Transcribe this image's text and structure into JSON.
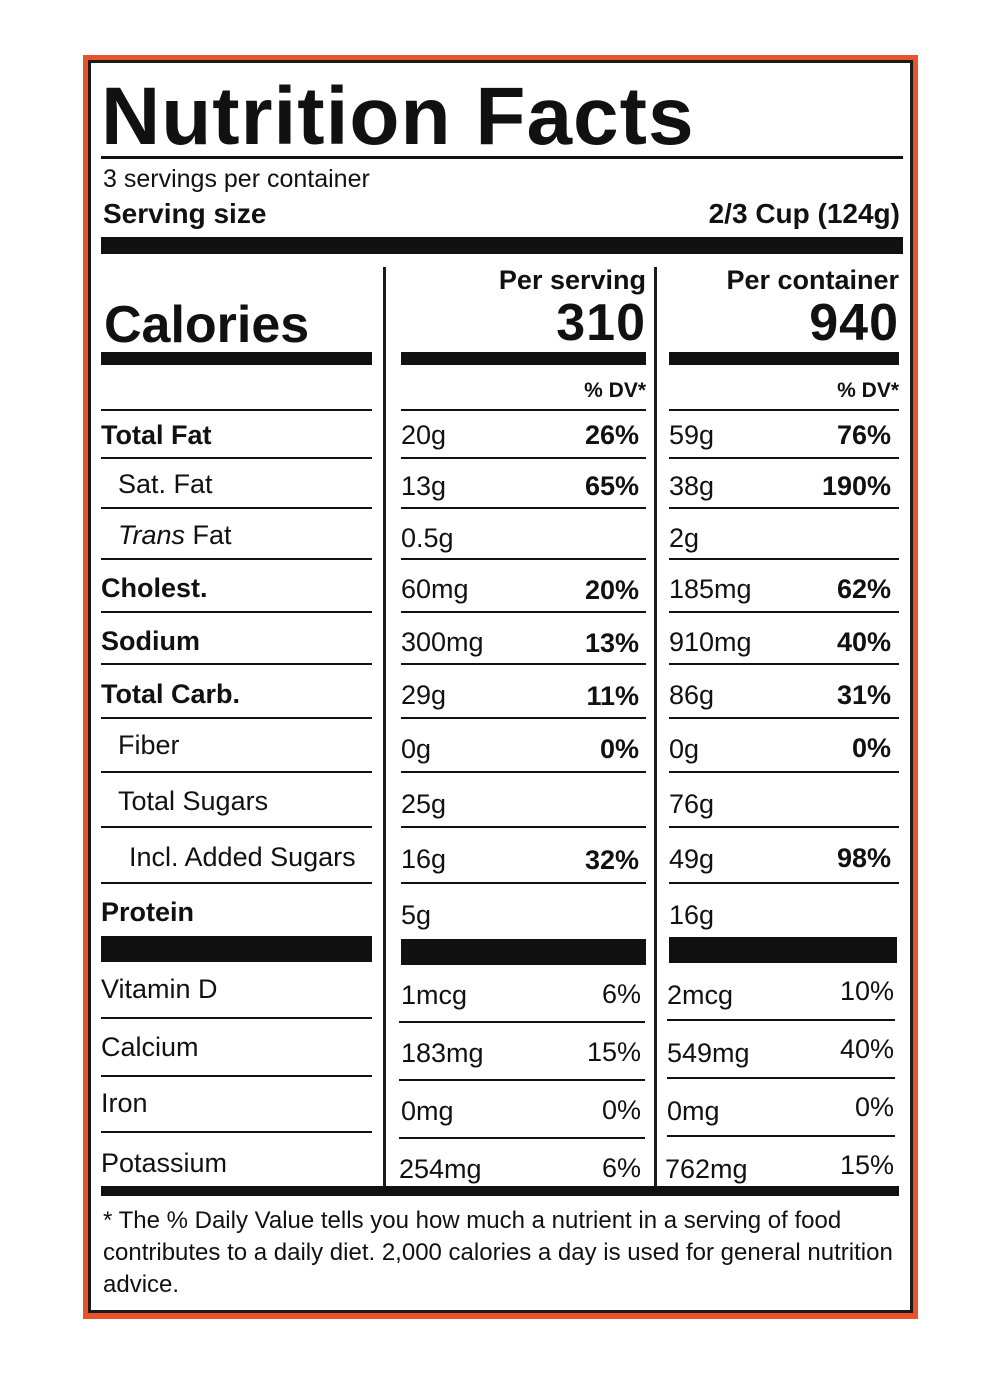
{
  "title": "Nutrition Facts",
  "servings_per_container": "3 servings per container",
  "serving_size_label": "Serving size",
  "serving_size_value": "2/3 Cup (124g)",
  "calories_label": "Calories",
  "per_serving_label": "Per serving",
  "per_container_label": "Per container",
  "calories_per_serving": "310",
  "calories_per_container": "940",
  "dv_header": "% DV*",
  "nutrients": [
    {
      "name": "Total Fat",
      "serving_amt": "20g",
      "serving_dv": "26%",
      "container_amt": "59g",
      "container_dv": "76%"
    },
    {
      "name": "Sat. Fat",
      "serving_amt": "13g",
      "serving_dv": "65%",
      "container_amt": "38g",
      "container_dv": "190%"
    },
    {
      "name_italic": "Trans",
      "name_rest": " Fat",
      "serving_amt": "0.5g",
      "serving_dv": "",
      "container_amt": "2g",
      "container_dv": ""
    },
    {
      "name": "Cholest.",
      "serving_amt": "60mg",
      "serving_dv": "20%",
      "container_amt": "185mg",
      "container_dv": "62%"
    },
    {
      "name": "Sodium",
      "serving_amt": "300mg",
      "serving_dv": "13%",
      "container_amt": "910mg",
      "container_dv": "40%"
    },
    {
      "name": "Total Carb.",
      "serving_amt": "29g",
      "serving_dv": "11%",
      "container_amt": "86g",
      "container_dv": "31%"
    },
    {
      "name": "Fiber",
      "serving_amt": "0g",
      "serving_dv": "0%",
      "container_amt": "0g",
      "container_dv": "0%"
    },
    {
      "name": "Total Sugars",
      "serving_amt": "25g",
      "serving_dv": "",
      "container_amt": "76g",
      "container_dv": ""
    },
    {
      "name": "Incl. Added Sugars",
      "serving_amt": "16g",
      "serving_dv": "32%",
      "container_amt": "49g",
      "container_dv": "98%"
    },
    {
      "name": "Protein",
      "serving_amt": "5g",
      "serving_dv": "",
      "container_amt": "16g",
      "container_dv": ""
    }
  ],
  "vitamins": [
    {
      "name": "Vitamin D",
      "serving_amt": "1mcg",
      "serving_dv": "6%",
      "container_amt": "2mcg",
      "container_dv": "10%"
    },
    {
      "name": "Calcium",
      "serving_amt": "183mg",
      "serving_dv": "15%",
      "container_amt": "549mg",
      "container_dv": "40%"
    },
    {
      "name": "Iron",
      "serving_amt": "0mg",
      "serving_dv": "0%",
      "container_amt": "0mg",
      "container_dv": "0%"
    },
    {
      "name": "Potassium",
      "serving_amt": "254mg",
      "serving_dv": "6%",
      "container_amt": "762mg",
      "container_dv": "15%"
    }
  ],
  "footnote": "* The % Daily Value tells you how much a nutrient in a serving of food contributes to a daily diet. 2,000 calories a day is used for general nutrition advice.",
  "colors": {
    "border_accent": "#e8532a",
    "ink": "#111111"
  }
}
